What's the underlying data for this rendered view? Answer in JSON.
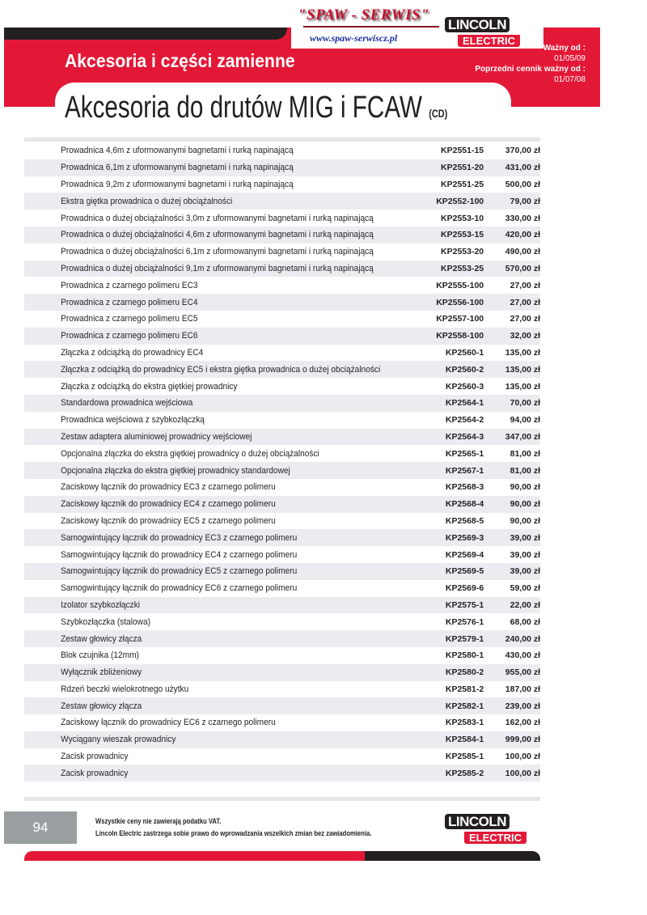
{
  "header": {
    "brand": "\"SPAW - SERWIS\"",
    "url": "www.spaw-serwiscz.pl",
    "logo_top": "LINCOLN",
    "logo_bottom": "ELECTRIC",
    "section": "Akcesoria i części zamienne",
    "valid_from_label": "Ważny od :",
    "valid_from": "01/05/09",
    "previous_label": "Poprzedni cennik ważny od :",
    "previous": "01/07/08",
    "title": "Akcesoria do drutów MIG i FCAW",
    "title_suffix": "(CD)"
  },
  "rows": [
    {
      "d": "Prowadnica 4,6m z uformowanymi bagnetami i rurką napinającą",
      "c": "KP2551-15",
      "p": "370,00 zł"
    },
    {
      "d": "Prowadnica 6,1m z uformowanymi bagnetami i rurką napinającą",
      "c": "KP2551-20",
      "p": "431,00 zł"
    },
    {
      "d": "Prowadnica 9,2m z uformowanymi bagnetami i rurką napinającą",
      "c": "KP2551-25",
      "p": "500,00 zł"
    },
    {
      "d": "Ekstra giętka prowadnica o dużej obciążalności",
      "c": "KP2552-100",
      "p": "79,00 zł"
    },
    {
      "d": "Prowadnica o dużej obciążalności 3,0m z uformowanymi bagnetami i rurką napinającą",
      "c": "KP2553-10",
      "p": "330,00 zł"
    },
    {
      "d": "Prowadnica o dużej obciążalności 4,6m z uformowanymi bagnetami i rurką napinającą",
      "c": "KP2553-15",
      "p": "420,00 zł"
    },
    {
      "d": "Prowadnica o dużej obciążalności 6,1m z uformowanymi bagnetami i rurką napinającą",
      "c": "KP2553-20",
      "p": "490,00 zł"
    },
    {
      "d": "Prowadnica o dużej obciążalności 9,1m z uformowanymi bagnetami i rurką napinającą",
      "c": "KP2553-25",
      "p": "570,00 zł"
    },
    {
      "d": "Prowadnica z czarnego polimeru EC3",
      "c": "KP2555-100",
      "p": "27,00 zł"
    },
    {
      "d": "Prowadnica z czarnego polimeru EC4",
      "c": "KP2556-100",
      "p": "27,00 zł"
    },
    {
      "d": "Prowadnica z czarnego polimeru EC5",
      "c": "KP2557-100",
      "p": "27,00 zł"
    },
    {
      "d": "Prowadnica z czarnego polimeru EC6",
      "c": "KP2558-100",
      "p": "32,00 zł"
    },
    {
      "d": "Złączka z odciążką do prowadnicy EC4",
      "c": "KP2560-1",
      "p": "135,00 zł"
    },
    {
      "d": "Złączka z odciążką do prowadnicy EC5 i ekstra giętka prowadnica o dużej obciążalności",
      "c": "KP2560-2",
      "p": "135,00 zł"
    },
    {
      "d": "Złączka z odciążką do ekstra giętkiej prowadnicy",
      "c": "KP2560-3",
      "p": "135,00 zł"
    },
    {
      "d": "Standardowa prowadnica wejściowa",
      "c": "KP2564-1",
      "p": "70,00 zł"
    },
    {
      "d": "Prowadnica wejściowa z szybkozłączką",
      "c": "KP2564-2",
      "p": "94,00 zł"
    },
    {
      "d": "Zestaw adaptera aluminiowej prowadnicy wejściowej",
      "c": "KP2564-3",
      "p": "347,00 zł"
    },
    {
      "d": "Opcjonalna złączka do ekstra giętkiej prowadnicy o dużej obciążalności",
      "c": "KP2565-1",
      "p": "81,00 zł"
    },
    {
      "d": "Opcjonalna złączka do ekstra giętkiej prowadnicy standardowej",
      "c": "KP2567-1",
      "p": "81,00 zł"
    },
    {
      "d": "Zaciskowy łącznik do prowadnicy EC3 z czarnego polimeru",
      "c": "KP2568-3",
      "p": "90,00 zł"
    },
    {
      "d": "Zaciskowy łącznik do prowadnicy EC4 z czarnego polimeru",
      "c": "KP2568-4",
      "p": "90,00 zł"
    },
    {
      "d": "Zaciskowy łącznik do prowadnicy EC5 z czarnego polimeru",
      "c": "KP2568-5",
      "p": "90,00 zł"
    },
    {
      "d": "Samogwintujący łącznik do prowadnicy EC3 z czarnego polimeru",
      "c": "KP2569-3",
      "p": "39,00 zł"
    },
    {
      "d": "Samogwintujący łącznik do prowadnicy EC4 z czarnego polimeru",
      "c": "KP2569-4",
      "p": "39,00 zł"
    },
    {
      "d": "Samogwintujący łącznik do prowadnicy EC5 z czarnego polimeru",
      "c": "KP2569-5",
      "p": "39,00 zł"
    },
    {
      "d": "Samogwintujący łącznik do prowadnicy EC6 z czarnego polimeru",
      "c": "KP2569-6",
      "p": "59,00 zł"
    },
    {
      "d": "Izolator szybkozłączki",
      "c": "KP2575-1",
      "p": "22,00 zł"
    },
    {
      "d": "Szybkozłączka (stalowa)",
      "c": "KP2576-1",
      "p": "68,00 zł"
    },
    {
      "d": "Zestaw głowicy złącza",
      "c": "KP2579-1",
      "p": "240,00 zł"
    },
    {
      "d": "Blok czujnika (12mm)",
      "c": "KP2580-1",
      "p": "430,00 zł"
    },
    {
      "d": "Wyłącznik zbliżeniowy",
      "c": "KP2580-2",
      "p": "955,00 zł"
    },
    {
      "d": "Rdzeń beczki wielokrotnego użytku",
      "c": "KP2581-2",
      "p": "187,00 zł"
    },
    {
      "d": "Zestaw głowicy złącza",
      "c": "KP2582-1",
      "p": "239,00 zł"
    },
    {
      "d": "Zaciskowy łącznik do prowadnicy EC6 z czarnego polimeru",
      "c": "KP2583-1",
      "p": "162,00 zł"
    },
    {
      "d": "Wyciągany wieszak prowadnicy",
      "c": "KP2584-1",
      "p": "999,00 zł"
    },
    {
      "d": "Zacisk prowadnicy",
      "c": "KP2585-1",
      "p": "100,00 zł"
    },
    {
      "d": "Zacisk prowadnicy",
      "c": "KP2585-2",
      "p": "100,00 zł"
    }
  ],
  "footer": {
    "page": "94",
    "note1": "Wszystkie ceny nie zawierają podatku VAT.",
    "note2": "Lincoln Electric zastrzega sobie prawo do wprowadzania wszelkich zmian bez zawiadomienia.",
    "logo_top": "LINCOLN",
    "logo_bottom": "ELECTRIC"
  },
  "colors": {
    "brand_red": "#e31837",
    "dark": "#231f20",
    "stripe": "#ececf0"
  }
}
